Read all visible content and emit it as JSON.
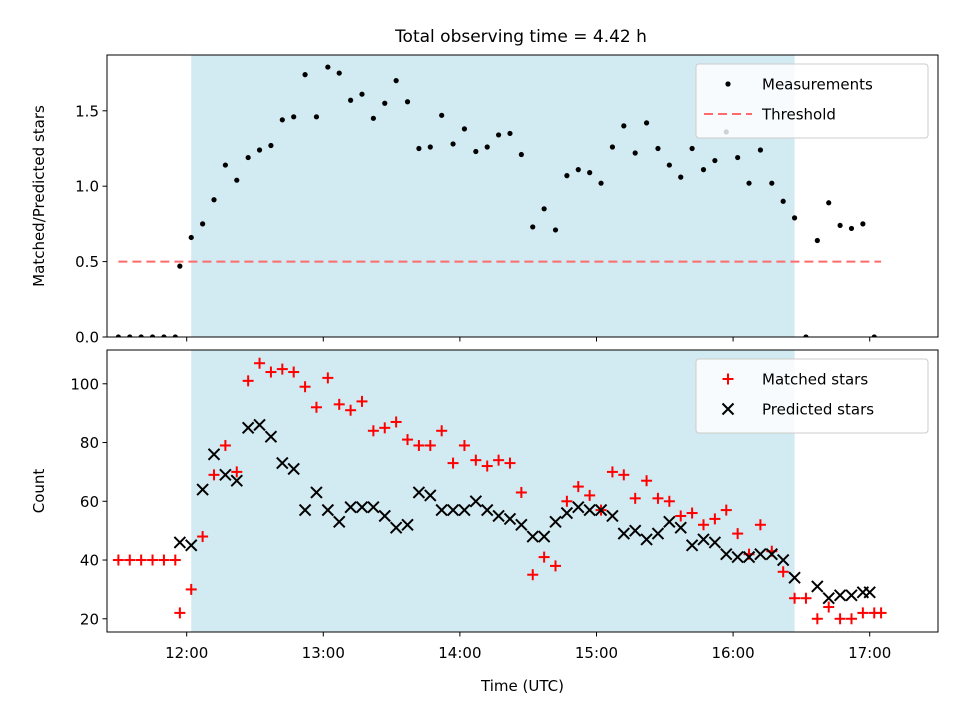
{
  "title": "Total observing time = 4.42 h",
  "colors": {
    "shade": "#add8e6",
    "measurements": "#000000",
    "threshold": "#ff6b6b",
    "matched": "#ff0000",
    "predicted": "#000000"
  },
  "chart_data": [
    {
      "type": "scatter",
      "ylabel": "Matched/Predicted stars",
      "xlim": [
        "11:25",
        "17:30"
      ],
      "ylim": [
        0,
        1.87
      ],
      "yticks": [
        "0.0",
        "0.5",
        "1.0",
        "1.5"
      ],
      "grid": false,
      "legend_position": "top-right",
      "observing_window": [
        "12:02",
        "16:27"
      ],
      "threshold": {
        "name": "Threshold",
        "value": 0.5,
        "x": [
          "11:30",
          "17:05"
        ]
      },
      "series": [
        {
          "name": "Measurements",
          "x": [
            "11:30",
            "11:35",
            "11:40",
            "11:45",
            "11:50",
            "11:55",
            "11:57",
            "12:02",
            "12:07",
            "12:12",
            "12:17",
            "12:22",
            "12:27",
            "12:32",
            "12:37",
            "12:42",
            "12:47",
            "12:52",
            "12:57",
            "13:02",
            "13:07",
            "13:12",
            "13:17",
            "13:22",
            "13:27",
            "13:32",
            "13:37",
            "13:42",
            "13:47",
            "13:52",
            "13:57",
            "14:02",
            "14:07",
            "14:12",
            "14:17",
            "14:22",
            "14:27",
            "14:32",
            "14:37",
            "14:42",
            "14:47",
            "14:52",
            "14:57",
            "15:02",
            "15:07",
            "15:12",
            "15:17",
            "15:22",
            "15:27",
            "15:32",
            "15:37",
            "15:42",
            "15:47",
            "15:52",
            "15:57",
            "16:02",
            "16:07",
            "16:12",
            "16:17",
            "16:22",
            "16:27",
            "16:32",
            "16:37",
            "16:42",
            "16:47",
            "16:52",
            "16:57",
            "17:02"
          ],
          "y": [
            0,
            0,
            0,
            0,
            0,
            0,
            0.47,
            0.66,
            0.75,
            0.91,
            1.14,
            1.04,
            1.19,
            1.24,
            1.27,
            1.44,
            1.46,
            1.74,
            1.46,
            1.79,
            1.75,
            1.57,
            1.61,
            1.45,
            1.55,
            1.7,
            1.56,
            1.25,
            1.26,
            1.47,
            1.28,
            1.38,
            1.23,
            1.26,
            1.34,
            1.35,
            1.21,
            0.73,
            0.85,
            0.71,
            1.07,
            1.11,
            1.09,
            1.02,
            1.26,
            1.4,
            1.22,
            1.42,
            1.25,
            1.14,
            1.06,
            1.25,
            1.11,
            1.17,
            1.36,
            1.19,
            1.02,
            1.24,
            1.02,
            0.9,
            0.79,
            0.0,
            0.64,
            0.89,
            0.74,
            0.72,
            0.75,
            0.0
          ]
        }
      ]
    },
    {
      "type": "scatter",
      "xlabel": "Time (UTC)",
      "ylabel": "Count",
      "xlim": [
        "11:25",
        "17:30"
      ],
      "ylim": [
        15.5,
        111.5
      ],
      "xticks": [
        "12:00",
        "13:00",
        "14:00",
        "15:00",
        "16:00",
        "17:00"
      ],
      "yticks": [
        "20",
        "40",
        "60",
        "80",
        "100"
      ],
      "grid": false,
      "legend_position": "top-right",
      "observing_window": [
        "12:02",
        "16:27"
      ],
      "series": [
        {
          "name": "Matched stars",
          "x": [
            "11:30",
            "11:35",
            "11:40",
            "11:45",
            "11:50",
            "11:55",
            "11:57",
            "12:02",
            "12:07",
            "12:12",
            "12:17",
            "12:22",
            "12:27",
            "12:32",
            "12:37",
            "12:42",
            "12:47",
            "12:52",
            "12:57",
            "13:02",
            "13:07",
            "13:12",
            "13:17",
            "13:22",
            "13:27",
            "13:32",
            "13:37",
            "13:42",
            "13:47",
            "13:52",
            "13:57",
            "14:02",
            "14:07",
            "14:12",
            "14:17",
            "14:22",
            "14:27",
            "14:32",
            "14:37",
            "14:42",
            "14:47",
            "14:52",
            "14:57",
            "15:02",
            "15:07",
            "15:12",
            "15:17",
            "15:22",
            "15:27",
            "15:32",
            "15:37",
            "15:42",
            "15:47",
            "15:52",
            "15:57",
            "16:02",
            "16:07",
            "16:12",
            "16:17",
            "16:22",
            "16:27",
            "16:32",
            "16:37",
            "16:42",
            "16:47",
            "16:52",
            "16:57",
            "17:02",
            "17:05"
          ],
          "y": [
            40,
            40,
            40,
            40,
            40,
            40,
            22,
            30,
            48,
            69,
            79,
            70,
            101,
            107,
            104,
            105,
            104,
            99,
            92,
            102,
            93,
            91,
            94,
            84,
            85,
            87,
            81,
            79,
            79,
            84,
            73,
            79,
            74,
            72,
            74,
            73,
            63,
            35,
            41,
            38,
            60,
            65,
            62,
            57,
            70,
            69,
            61,
            67,
            61,
            60,
            55,
            56,
            52,
            54,
            57,
            49,
            42,
            52,
            43,
            36,
            27,
            27,
            20,
            24,
            20,
            20,
            22,
            22,
            22
          ]
        },
        {
          "name": "Predicted stars",
          "x": [
            "11:57",
            "12:02",
            "12:07",
            "12:12",
            "12:17",
            "12:22",
            "12:27",
            "12:32",
            "12:37",
            "12:42",
            "12:47",
            "12:52",
            "12:57",
            "13:02",
            "13:07",
            "13:12",
            "13:17",
            "13:22",
            "13:27",
            "13:32",
            "13:37",
            "13:42",
            "13:47",
            "13:52",
            "13:57",
            "14:02",
            "14:07",
            "14:12",
            "14:17",
            "14:22",
            "14:27",
            "14:32",
            "14:37",
            "14:42",
            "14:47",
            "14:52",
            "14:57",
            "15:02",
            "15:07",
            "15:12",
            "15:17",
            "15:22",
            "15:27",
            "15:32",
            "15:37",
            "15:42",
            "15:47",
            "15:52",
            "15:57",
            "16:02",
            "16:07",
            "16:12",
            "16:17",
            "16:22",
            "16:27",
            "16:37",
            "16:42",
            "16:47",
            "16:52",
            "16:57",
            "17:00"
          ],
          "y": [
            46,
            45,
            64,
            76,
            69,
            67,
            85,
            86,
            82,
            73,
            71,
            57,
            63,
            57,
            53,
            58,
            58,
            58,
            55,
            51,
            52,
            63,
            62,
            57,
            57,
            57,
            60,
            57,
            55,
            54,
            52,
            48,
            48,
            53,
            56,
            58,
            57,
            57,
            55,
            49,
            50,
            47,
            49,
            53,
            51,
            45,
            47,
            46,
            42,
            41,
            41,
            42,
            42,
            40,
            34,
            31,
            27,
            28,
            28,
            29,
            29
          ]
        }
      ]
    }
  ]
}
